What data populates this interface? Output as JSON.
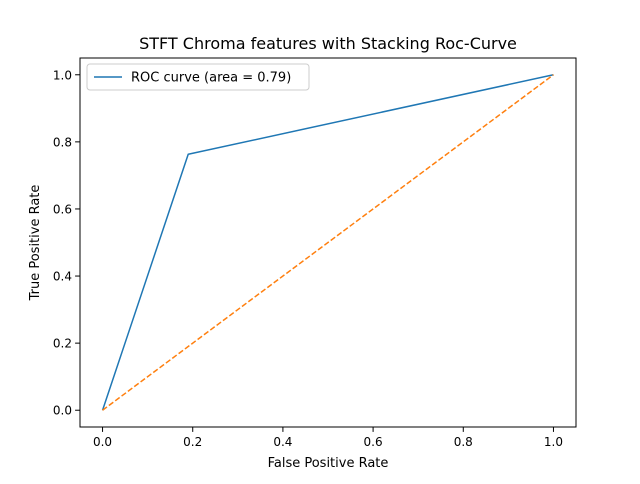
{
  "chart_data": {
    "type": "line",
    "title": "STFT Chroma features with Stacking Roc-Curve",
    "xlabel": "False Positive Rate",
    "ylabel": "True Positive Rate",
    "xlim": [
      -0.05,
      1.05
    ],
    "ylim": [
      -0.05,
      1.05
    ],
    "xticks": [
      {
        "value": 0.0,
        "label": "0.0"
      },
      {
        "value": 0.2,
        "label": "0.2"
      },
      {
        "value": 0.4,
        "label": "0.4"
      },
      {
        "value": 0.6,
        "label": "0.6"
      },
      {
        "value": 0.8,
        "label": "0.8"
      },
      {
        "value": 1.0,
        "label": "1.0"
      }
    ],
    "yticks": [
      {
        "value": 0.0,
        "label": "0.0"
      },
      {
        "value": 0.2,
        "label": "0.2"
      },
      {
        "value": 0.4,
        "label": "0.4"
      },
      {
        "value": 0.6,
        "label": "0.6"
      },
      {
        "value": 0.8,
        "label": "0.8"
      },
      {
        "value": 1.0,
        "label": "1.0"
      }
    ],
    "grid": false,
    "legend_position": "top-left",
    "series": [
      {
        "name": "ROC curve (area = 0.79)",
        "color": "#1f77b4",
        "style": "solid",
        "x": [
          0.0,
          0.19,
          1.0
        ],
        "y": [
          0.0,
          0.763,
          1.0
        ]
      },
      {
        "color": "#ff7f0e",
        "style": "dashed",
        "x": [
          0.0,
          1.0
        ],
        "y": [
          0.0,
          1.0
        ]
      }
    ]
  }
}
